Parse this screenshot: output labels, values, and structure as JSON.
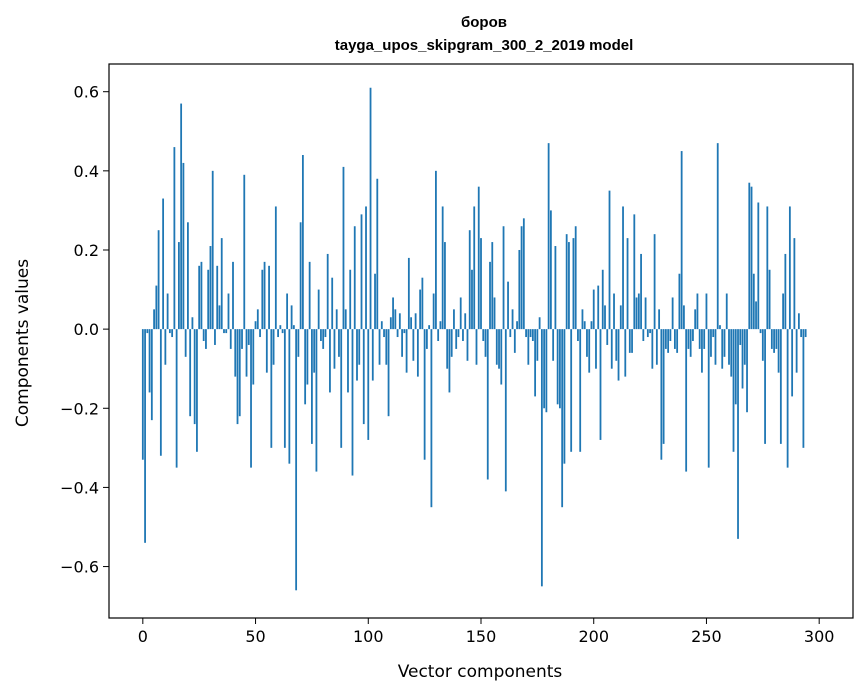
{
  "chart_data": {
    "type": "bar",
    "title": "боров",
    "subtitle": "tayga_upos_skipgram_300_2_2019 model",
    "xlabel": "Vector components",
    "ylabel": "Components values",
    "xlim": [
      -15,
      315
    ],
    "ylim": [
      -0.73,
      0.67
    ],
    "xticks": [
      0,
      50,
      100,
      150,
      200,
      250,
      300
    ],
    "xtick_labels": [
      "0",
      "50",
      "100",
      "150",
      "200",
      "250",
      "300"
    ],
    "yticks": [
      -0.6,
      -0.4,
      -0.2,
      0.0,
      0.2,
      0.4,
      0.6
    ],
    "ytick_labels": [
      "−0.6",
      "−0.4",
      "−0.2",
      "0.0",
      "0.2",
      "0.4",
      "0.6"
    ],
    "grid": false,
    "bar_color": "#1f77b4",
    "series": [
      {
        "values": [
          -0.33,
          -0.54,
          -0.01,
          -0.16,
          -0.23,
          0.05,
          0.11,
          0.25,
          -0.32,
          0.33,
          -0.09,
          0.09,
          -0.01,
          -0.02,
          0.46,
          -0.35,
          0.22,
          0.57,
          0.42,
          -0.07,
          0.27,
          -0.22,
          0.03,
          -0.24,
          -0.31,
          0.16,
          0.17,
          -0.03,
          -0.05,
          0.15,
          0.21,
          0.4,
          -0.04,
          0.16,
          0.06,
          0.23,
          -0.01,
          -0.01,
          0.09,
          -0.05,
          0.17,
          -0.12,
          -0.24,
          -0.22,
          -0.05,
          0.39,
          -0.12,
          -0.04,
          -0.35,
          -0.14,
          0.02,
          0.05,
          -0.02,
          0.15,
          0.17,
          -0.11,
          0.16,
          -0.3,
          -0.09,
          0.31,
          -0.02,
          0.01,
          -0.01,
          -0.3,
          0.09,
          -0.34,
          0.06,
          0.01,
          -0.66,
          -0.07,
          0.27,
          0.44,
          -0.19,
          -0.14,
          0.17,
          -0.29,
          -0.11,
          -0.36,
          0.1,
          -0.03,
          -0.05,
          -0.02,
          0.19,
          -0.16,
          0.13,
          -0.1,
          0.05,
          -0.07,
          -0.3,
          0.41,
          0.05,
          -0.16,
          0.15,
          -0.37,
          0.26,
          -0.13,
          -0.09,
          0.29,
          -0.24,
          0.31,
          -0.28,
          0.61,
          -0.13,
          0.14,
          0.38,
          -0.09,
          0.02,
          -0.02,
          -0.09,
          -0.22,
          0.03,
          0.08,
          0.05,
          -0.02,
          0.04,
          -0.07,
          -0.01,
          -0.11,
          0.18,
          0.03,
          -0.08,
          0.04,
          -0.12,
          0.1,
          0.13,
          -0.33,
          -0.05,
          0.01,
          -0.45,
          0.09,
          0.4,
          -0.03,
          0.02,
          0.31,
          0.22,
          -0.1,
          -0.16,
          -0.07,
          0.05,
          -0.05,
          -0.02,
          0.08,
          -0.03,
          0.04,
          -0.08,
          0.25,
          0.15,
          0.31,
          -0.09,
          0.36,
          0.23,
          -0.03,
          -0.07,
          -0.38,
          0.17,
          0.22,
          0.08,
          -0.09,
          -0.1,
          -0.14,
          0.26,
          -0.41,
          0.12,
          -0.02,
          0.05,
          -0.06,
          0.02,
          0.2,
          0.26,
          0.28,
          -0.02,
          -0.09,
          -0.02,
          -0.03,
          -0.17,
          -0.08,
          0.03,
          -0.65,
          -0.2,
          -0.21,
          0.47,
          0.3,
          -0.08,
          0.21,
          -0.19,
          -0.2,
          -0.45,
          -0.34,
          0.24,
          0.22,
          -0.31,
          0.23,
          0.26,
          -0.03,
          -0.31,
          0.05,
          0.02,
          -0.07,
          -0.11,
          0.02,
          0.1,
          -0.1,
          0.11,
          -0.28,
          0.15,
          0.06,
          -0.04,
          0.35,
          -0.1,
          0.09,
          -0.08,
          -0.13,
          0.06,
          0.31,
          -0.12,
          0.23,
          -0.06,
          -0.06,
          0.29,
          0.08,
          0.09,
          0.19,
          -0.03,
          0.08,
          -0.02,
          -0.01,
          -0.1,
          0.24,
          -0.09,
          0.05,
          -0.33,
          -0.29,
          -0.05,
          -0.06,
          -0.03,
          0.08,
          -0.05,
          -0.06,
          0.14,
          0.45,
          0.06,
          -0.36,
          -0.05,
          -0.07,
          -0.03,
          0.05,
          0.09,
          -0.05,
          -0.11,
          -0.05,
          0.09,
          -0.35,
          -0.07,
          -0.02,
          -0.09,
          0.47,
          0.01,
          -0.1,
          -0.07,
          0.09,
          -0.09,
          -0.12,
          -0.31,
          -0.19,
          -0.53,
          -0.04,
          -0.15,
          -0.09,
          -0.21,
          0.37,
          0.36,
          0.14,
          0.07,
          0.32,
          -0.01,
          -0.08,
          -0.29,
          0.31,
          0.15,
          -0.05,
          -0.06,
          -0.05,
          -0.11,
          -0.29,
          0.09,
          0.19,
          -0.35,
          0.31,
          -0.17,
          0.23,
          -0.11,
          0.04,
          -0.02,
          -0.3,
          -0.02
        ]
      }
    ]
  }
}
